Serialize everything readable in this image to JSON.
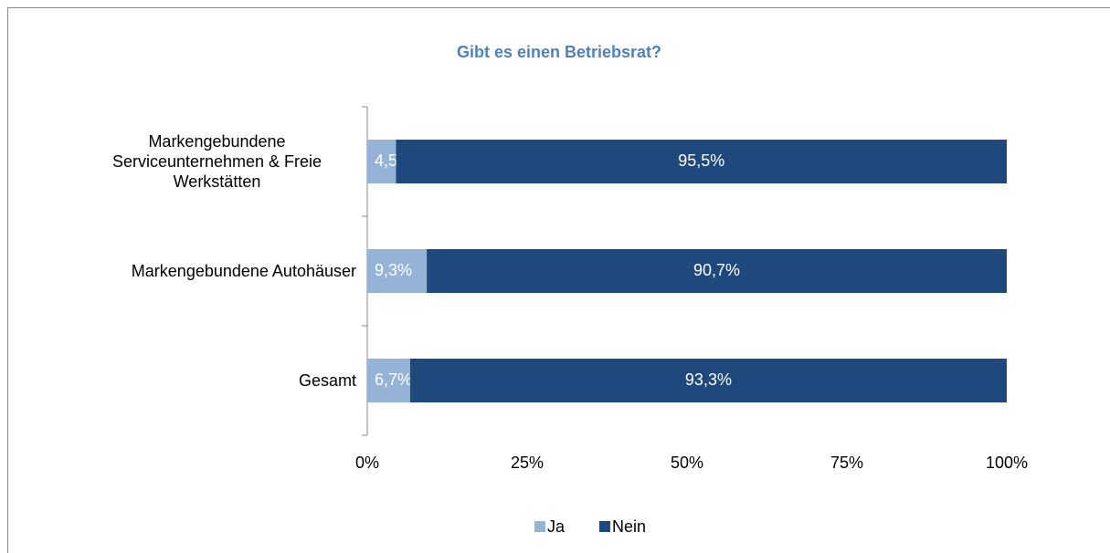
{
  "chart_data": {
    "type": "stacked-barh",
    "title": "Gibt es einen Betriebsrat?",
    "categories": [
      "Markengebundene Serviceunternehmen & Freie Werkstätten",
      "Markengebundene Autohäuser",
      "Gesamt"
    ],
    "series": [
      {
        "name": "Ja",
        "color": "#95b3d7",
        "values": [
          4.5,
          9.3,
          6.7
        ],
        "value_labels": [
          "4,5%",
          "9,3%",
          "6,7%"
        ]
      },
      {
        "name": "Nein",
        "color": "#1f497d",
        "values": [
          95.5,
          90.7,
          93.3
        ],
        "value_labels": [
          "95,5%",
          "90,7%",
          "93,3%"
        ]
      }
    ],
    "xlim": [
      0,
      100
    ],
    "xticks": [
      {
        "value": 0,
        "label": "0%"
      },
      {
        "value": 25,
        "label": "25%"
      },
      {
        "value": 50,
        "label": "50%"
      },
      {
        "value": 75,
        "label": "75%"
      },
      {
        "value": 100,
        "label": "100%"
      }
    ],
    "grid": false,
    "legend": "bottom"
  }
}
